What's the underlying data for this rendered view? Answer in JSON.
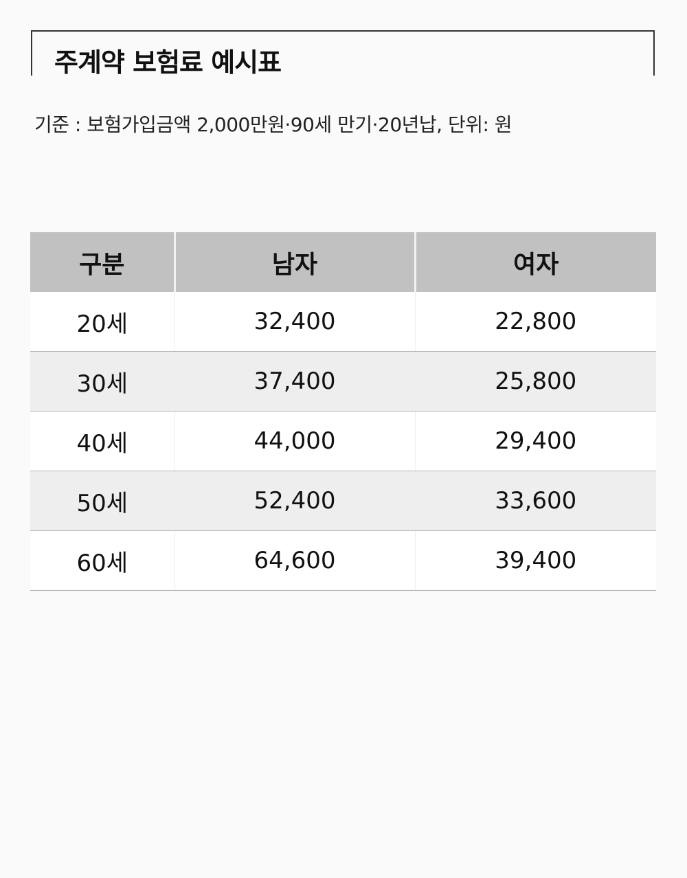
{
  "title": "주계약 보험료 예시표",
  "subtitle": "기준 : 보험가입금액 2,000만원·90세 만기·20년납, 단위: 원",
  "table": {
    "headers": [
      "구분",
      "남자",
      "여자"
    ],
    "rows": [
      {
        "age": "20세",
        "male": "32,400",
        "female": "22,800"
      },
      {
        "age": "30세",
        "male": "37,400",
        "female": "25,800"
      },
      {
        "age": "40세",
        "male": "44,000",
        "female": "29,400"
      },
      {
        "age": "50세",
        "male": "52,400",
        "female": "33,600"
      },
      {
        "age": "60세",
        "male": "64,600",
        "female": "39,400"
      }
    ]
  },
  "colors": {
    "header_bg": "#c1c1c1",
    "row_alt_bg": "#eeeeee",
    "row_bg": "#ffffff",
    "page_bg": "#fafafa"
  }
}
